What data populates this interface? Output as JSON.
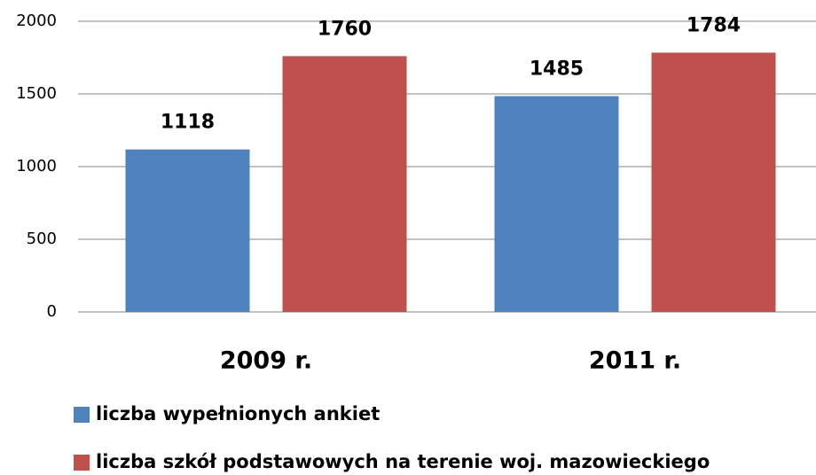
{
  "chart_data": {
    "type": "bar",
    "categories": [
      "2009 r.",
      "2011 r."
    ],
    "series": [
      {
        "name": "liczba wypełnionych ankiet",
        "color": "#4f81bd",
        "values": [
          1118,
          1485
        ]
      },
      {
        "name": "liczba szkół podstawowych na terenie woj. mazowieckiego",
        "color": "#c0504d",
        "values": [
          1760,
          1784
        ]
      }
    ],
    "ylim": [
      0,
      2000
    ],
    "yticks": [
      0,
      500,
      1000,
      1500,
      2000
    ],
    "grid": true,
    "legend": "bottom"
  }
}
